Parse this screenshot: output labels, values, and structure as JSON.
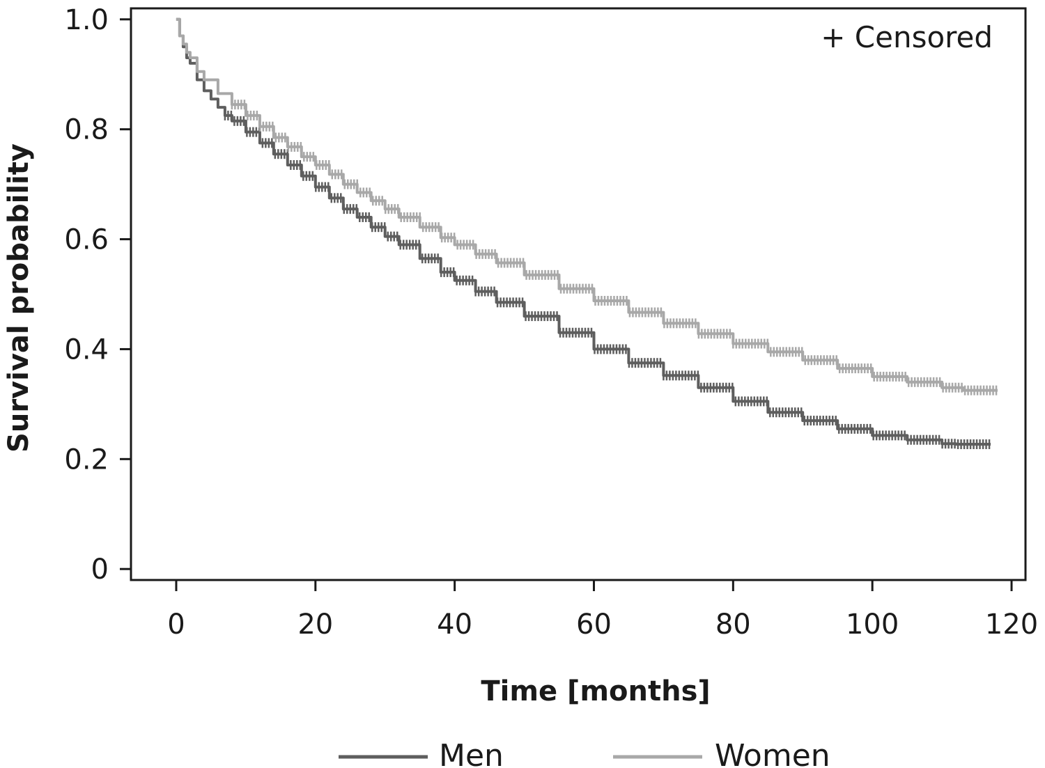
{
  "chart_data": {
    "type": "line",
    "subtype": "kaplan-meier survival curve",
    "title": "",
    "xlabel": "Time [months]",
    "ylabel": "Survival probability",
    "xlim": [
      -6.5,
      122
    ],
    "ylim": [
      -0.02,
      1.02
    ],
    "xticks": [
      0,
      20,
      40,
      60,
      80,
      100,
      120
    ],
    "xtick_labels": [
      "0",
      "20",
      "40",
      "60",
      "80",
      "100",
      "120"
    ],
    "yticks": [
      0,
      0.2,
      0.4,
      0.6,
      0.8,
      1.0
    ],
    "ytick_labels": [
      "0",
      "0.2",
      "0.4",
      "0.6",
      "0.8",
      "1.0"
    ],
    "grid": false,
    "annotation": "+ Censored",
    "legend_position": "bottom",
    "series": [
      {
        "name": "Men",
        "color": "#5e5e5e",
        "step": true,
        "x": [
          0,
          0.5,
          1,
          1.5,
          2,
          3,
          4,
          5,
          6,
          7,
          8,
          10,
          12,
          14,
          16,
          18,
          20,
          22,
          24,
          26,
          28,
          30,
          32,
          35,
          38,
          40,
          43,
          46,
          50,
          55,
          60,
          65,
          70,
          75,
          80,
          85,
          90,
          95,
          100,
          105,
          110,
          112,
          117
        ],
        "y": [
          1.0,
          0.97,
          0.95,
          0.93,
          0.92,
          0.89,
          0.87,
          0.855,
          0.84,
          0.825,
          0.815,
          0.795,
          0.775,
          0.755,
          0.735,
          0.715,
          0.695,
          0.675,
          0.655,
          0.64,
          0.622,
          0.605,
          0.59,
          0.565,
          0.54,
          0.525,
          0.505,
          0.485,
          0.46,
          0.43,
          0.4,
          0.375,
          0.352,
          0.33,
          0.305,
          0.285,
          0.27,
          0.255,
          0.243,
          0.235,
          0.228,
          0.227,
          0.227
        ],
        "censored_from_x": 7
      },
      {
        "name": "Women",
        "color": "#a8a8a8",
        "step": true,
        "x": [
          0,
          0.5,
          1,
          1.5,
          2,
          3,
          4,
          6,
          8,
          10,
          12,
          14,
          16,
          18,
          20,
          22,
          24,
          26,
          28,
          30,
          32,
          35,
          38,
          40,
          43,
          46,
          50,
          55,
          60,
          65,
          70,
          75,
          80,
          85,
          90,
          95,
          100,
          105,
          110,
          113,
          118
        ],
        "y": [
          1.0,
          0.97,
          0.955,
          0.94,
          0.93,
          0.905,
          0.89,
          0.865,
          0.845,
          0.825,
          0.805,
          0.785,
          0.768,
          0.75,
          0.735,
          0.718,
          0.7,
          0.685,
          0.67,
          0.655,
          0.64,
          0.622,
          0.603,
          0.59,
          0.573,
          0.557,
          0.535,
          0.51,
          0.488,
          0.467,
          0.447,
          0.428,
          0.41,
          0.395,
          0.38,
          0.365,
          0.35,
          0.34,
          0.33,
          0.325,
          0.325
        ],
        "censored_from_x": 8
      }
    ]
  }
}
